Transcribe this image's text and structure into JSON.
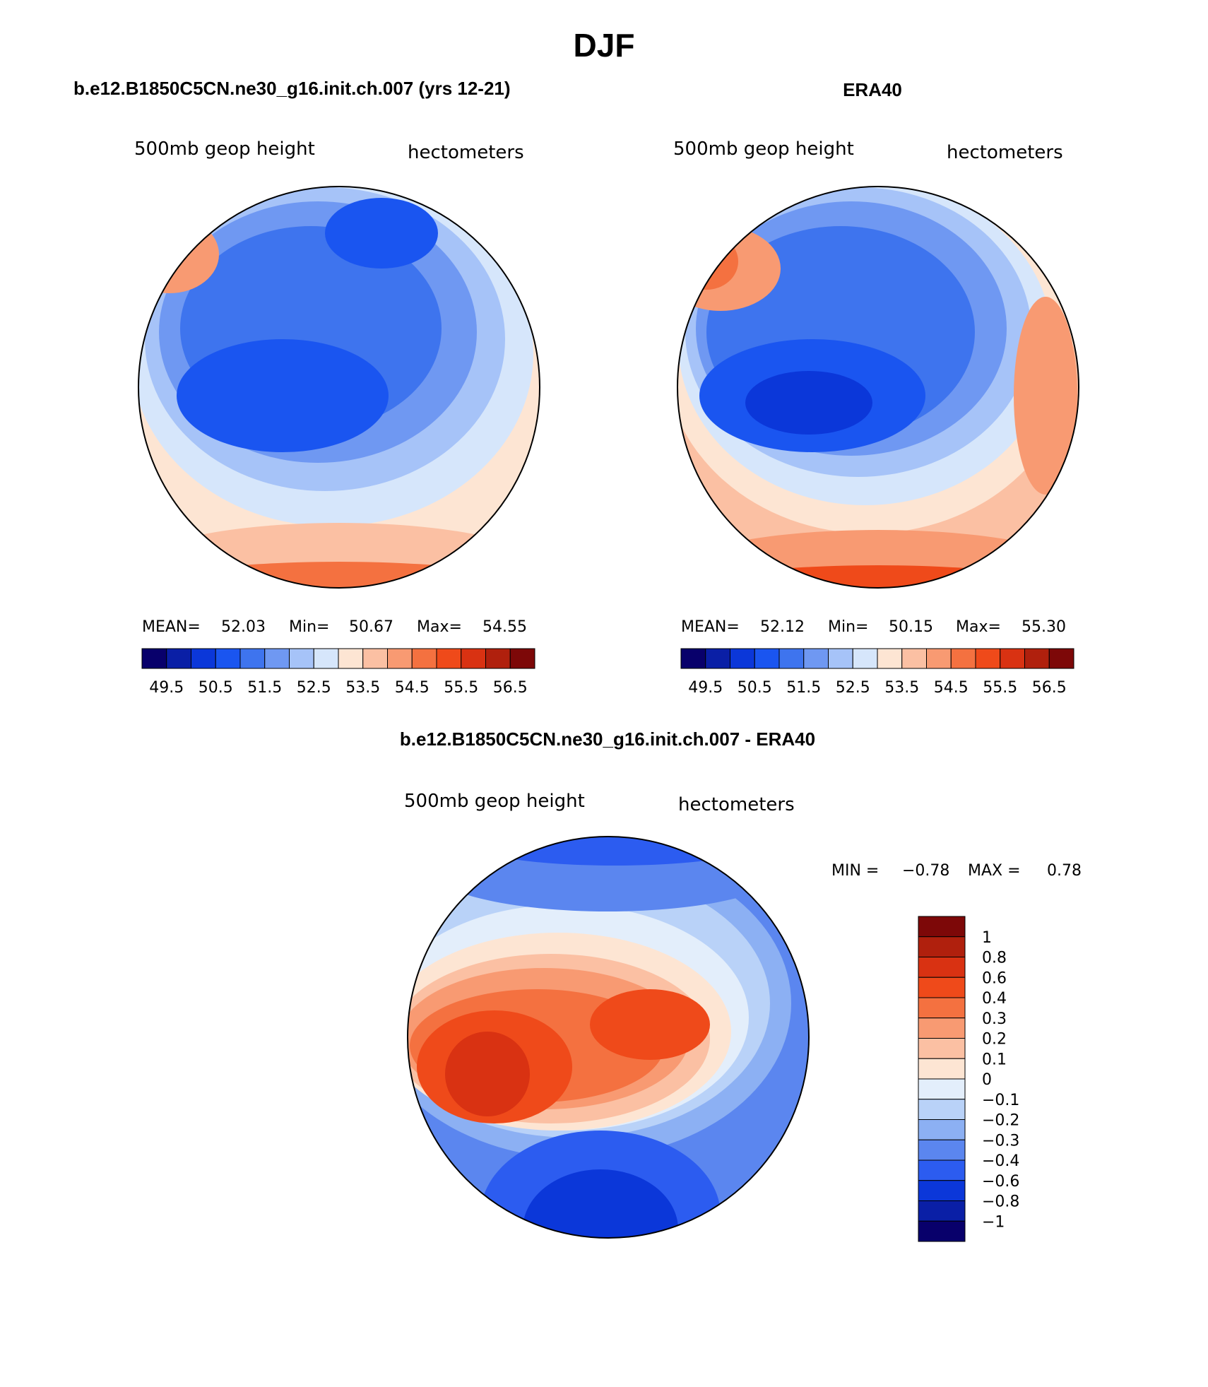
{
  "page_title": "DJF",
  "chart_data": [
    {
      "type": "heatmap",
      "projection": "polar stereographic (north pole)",
      "title": "b.e12.B1850C5CN.ne30_g16.init.ch.007 (yrs 12-21)",
      "left_label": "500mb geop height",
      "right_label": "hectometers",
      "stats": {
        "mean_label": "MEAN=",
        "mean": "52.03",
        "min_label": "Min=",
        "min": "50.67",
        "max_label": "Max=",
        "max": "54.55"
      },
      "colorbar": {
        "orientation": "horizontal",
        "tick_labels": [
          "49.5",
          "50.5",
          "51.5",
          "52.5",
          "53.5",
          "54.5",
          "55.5",
          "56.5"
        ],
        "colors": [
          "#08006b",
          "#0a1fa6",
          "#0b37d9",
          "#1a55f0",
          "#3e74ee",
          "#6f98f2",
          "#a6c3f8",
          "#d6e6fb",
          "#fde5d3",
          "#fbc0a3",
          "#f89a72",
          "#f47140",
          "#ef4a1a",
          "#d93212",
          "#b0200d",
          "#7d0808"
        ]
      },
      "field_description": "Low heights centred near Canadian Arctic archipelago (~50.7), rising to ~54.5 at outer edge"
    },
    {
      "type": "heatmap",
      "projection": "polar stereographic (north pole)",
      "title": "ERA40",
      "left_label": "500mb geop height",
      "right_label": "hectometers",
      "stats": {
        "mean_label": "MEAN=",
        "mean": "52.12",
        "min_label": "Min=",
        "min": "50.15",
        "max_label": "Max=",
        "max": "55.30"
      },
      "colorbar": {
        "orientation": "horizontal",
        "tick_labels": [
          "49.5",
          "50.5",
          "51.5",
          "52.5",
          "53.5",
          "54.5",
          "55.5",
          "56.5"
        ],
        "colors": [
          "#08006b",
          "#0a1fa6",
          "#0b37d9",
          "#1a55f0",
          "#3e74ee",
          "#6f98f2",
          "#a6c3f8",
          "#d6e6fb",
          "#fde5d3",
          "#fbc0a3",
          "#f89a72",
          "#f47140",
          "#ef4a1a",
          "#d93212",
          "#b0200d",
          "#7d0808"
        ]
      },
      "field_description": "Low heights centred over Baffin Bay / archipelago (~50.2), highest ~55.3 over Europe"
    },
    {
      "type": "heatmap",
      "projection": "polar stereographic (north pole)",
      "title": "b.e12.B1850C5CN.ne30_g16.init.ch.007 - ERA40",
      "left_label": "500mb geop height",
      "right_label": "hectometers",
      "stats": {
        "min_label": "MIN =",
        "min": "−0.78",
        "max_label": "MAX =",
        "max": "0.78"
      },
      "colorbar": {
        "orientation": "vertical",
        "tick_labels": [
          "1",
          "0.8",
          "0.6",
          "0.4",
          "0.3",
          "0.2",
          "0.1",
          "0",
          "−0.1",
          "−0.2",
          "−0.3",
          "−0.4",
          "−0.6",
          "−0.8",
          "−1"
        ],
        "colors": [
          "#7d0808",
          "#b0200d",
          "#d93212",
          "#ef4a1a",
          "#f47140",
          "#f89a72",
          "#fbc0a3",
          "#fde5d3",
          "#e3eefb",
          "#b9d2f8",
          "#8cb0f3",
          "#5b86ef",
          "#2c5cf0",
          "#0b37d9",
          "#0a1fa6",
          "#08006b"
        ]
      },
      "field_description": "Positive difference (up to ~0.78) over North America and the Arctic; negative (down to ~-0.78) over Europe/Atlantic and Pacific margins"
    }
  ]
}
